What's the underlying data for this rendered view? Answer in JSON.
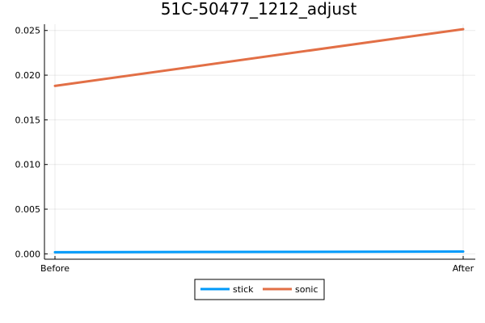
{
  "chart_data": {
    "type": "line",
    "title": "51C-50477_1212_adjust",
    "xlabel": "",
    "ylabel": "",
    "categories": [
      "Before",
      "After"
    ],
    "series": [
      {
        "name": "stick",
        "values": [
          0.00018,
          0.00026
        ],
        "color": "#009AFA"
      },
      {
        "name": "sonic",
        "values": [
          0.0188,
          0.02515
        ],
        "color": "#E26F46"
      }
    ],
    "ylim": [
      -0.0006,
      0.0257
    ],
    "yticks": [
      0.0,
      0.005,
      0.01,
      0.015,
      0.02,
      0.025
    ],
    "ytick_labels": [
      "0.000",
      "0.005",
      "0.010",
      "0.015",
      "0.020",
      "0.025"
    ],
    "grid": true,
    "legend_position": "bottom-center"
  }
}
